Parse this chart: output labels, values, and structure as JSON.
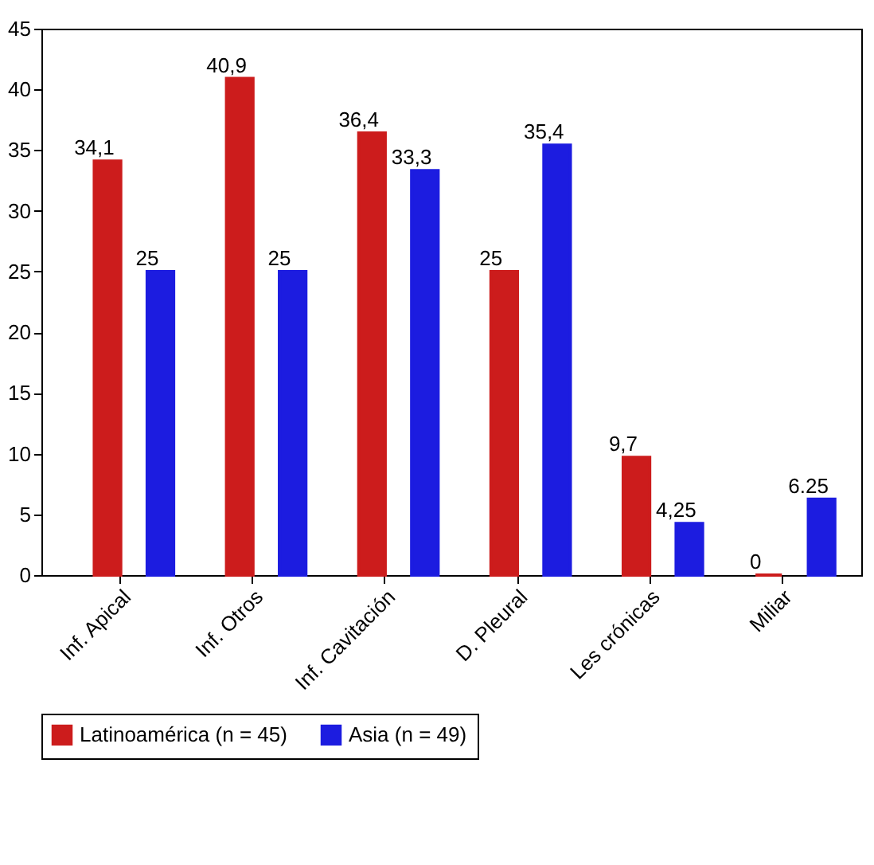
{
  "chart_data": {
    "type": "bar",
    "categories": [
      "Inf. Apical",
      "Inf. Otros",
      "Inf. Cavitación",
      "D. Pleural",
      "Les crónicas",
      "Miliar"
    ],
    "series": [
      {
        "name": "Latinoamérica (n = 45)",
        "color": "#cc1c1c",
        "values": [
          34.1,
          40.9,
          36.4,
          25,
          9.7,
          0
        ],
        "value_labels": [
          "34,1",
          "40,9",
          "36,4",
          "25",
          "9,7",
          "0"
        ]
      },
      {
        "name": "Asia (n = 49)",
        "color": "#1c1ce0",
        "values": [
          25,
          25,
          33.3,
          35.4,
          4.25,
          6.25
        ],
        "value_labels": [
          "25",
          "25",
          "33,3",
          "35,4",
          "4,25",
          "6.25"
        ]
      }
    ],
    "ylim": [
      0,
      45
    ],
    "yticks": [
      0,
      5,
      10,
      15,
      20,
      25,
      30,
      35,
      40,
      45
    ],
    "legend": "bottom"
  }
}
